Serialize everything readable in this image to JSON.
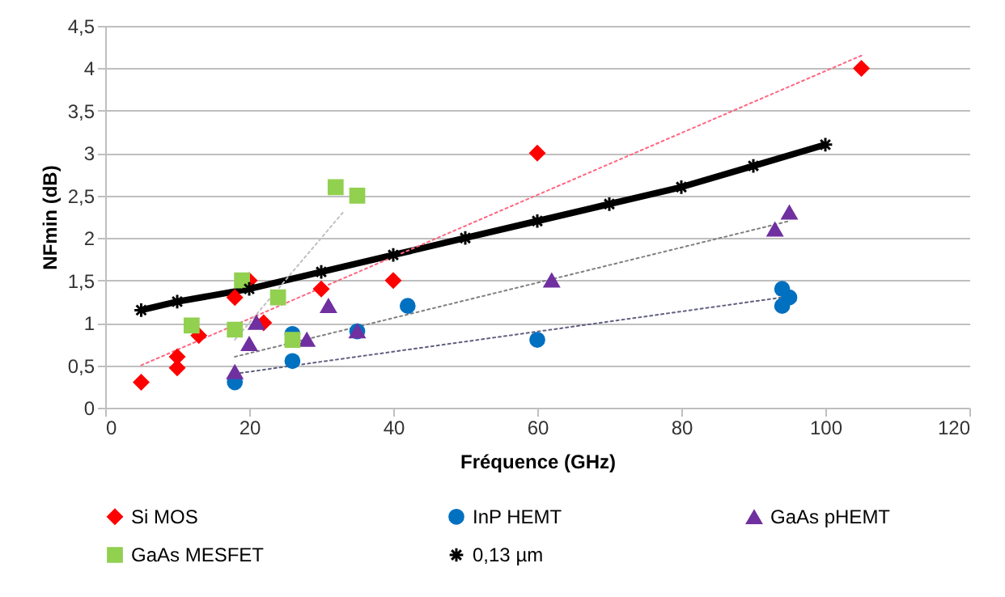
{
  "chart_data": {
    "type": "scatter",
    "xlabel": "Fréquence (GHz)",
    "ylabel": "NFmin (dB)",
    "xlim": [
      0,
      120
    ],
    "ylim": [
      0,
      4.5
    ],
    "xticks": [
      0,
      20,
      40,
      60,
      80,
      100,
      120
    ],
    "yticks": [
      0,
      {
        "value": 0.5,
        "label": "0,5"
      },
      1,
      {
        "value": 1.5,
        "label": "1,5"
      },
      2,
      {
        "value": 2.5,
        "label": "2,5"
      },
      3,
      {
        "value": 3.5,
        "label": "3,5"
      },
      4,
      {
        "value": 4.5,
        "label": "4,5"
      }
    ],
    "grid": "y",
    "legend": "bottom",
    "series": [
      {
        "name": "Si MOS",
        "marker": "diamond",
        "color": "#ff0000",
        "x": [
          5,
          10,
          10,
          13,
          18,
          20,
          22,
          30,
          40,
          60,
          105
        ],
        "values": [
          0.3,
          0.6,
          0.47,
          0.85,
          1.3,
          1.5,
          1.0,
          1.4,
          1.5,
          3.0,
          4.0
        ]
      },
      {
        "name": "InP HEMT",
        "marker": "circle",
        "color": "#0070c0",
        "x": [
          18,
          26,
          26,
          35,
          42,
          60,
          94,
          94,
          95
        ],
        "values": [
          0.3,
          0.87,
          0.55,
          0.9,
          1.2,
          0.8,
          1.4,
          1.2,
          1.3
        ]
      },
      {
        "name": "GaAs pHEMT",
        "marker": "triangle",
        "color": "#7030a0",
        "x": [
          18,
          20,
          21,
          28,
          31,
          35,
          62,
          93,
          95
        ],
        "values": [
          0.42,
          0.75,
          1.0,
          0.8,
          1.2,
          0.9,
          1.5,
          2.1,
          2.3
        ]
      },
      {
        "name": "GaAs MESFET",
        "marker": "square",
        "color": "#92d050",
        "x": [
          12,
          18,
          19,
          24,
          26,
          32,
          35
        ],
        "values": [
          0.97,
          0.92,
          1.5,
          1.3,
          0.8,
          2.6,
          2.5
        ]
      },
      {
        "name": "0,13 µm",
        "type": "line",
        "marker": "cross",
        "line_style": "solid",
        "color": "#000000",
        "x": [
          5,
          10,
          20,
          30,
          40,
          50,
          60,
          70,
          80,
          90,
          100
        ],
        "values": [
          1.15,
          1.25,
          1.4,
          1.6,
          1.8,
          2.0,
          2.2,
          2.4,
          2.6,
          2.85,
          3.1
        ]
      },
      {
        "type": "line",
        "marker": "none",
        "line_style": "dotted",
        "color": "#ff6680",
        "x": [
          5,
          105
        ],
        "values": [
          0.5,
          4.15
        ]
      },
      {
        "type": "line",
        "marker": "none",
        "line_style": "dotted",
        "color": "#c0c0c0",
        "x": [
          18,
          33
        ],
        "values": [
          0.8,
          2.3
        ]
      },
      {
        "type": "line",
        "marker": "none",
        "line_style": "dotted",
        "color": "#808080",
        "x": [
          18,
          95
        ],
        "values": [
          0.6,
          2.2
        ]
      },
      {
        "type": "line",
        "marker": "none",
        "line_style": "dotted",
        "color": "#606080",
        "x": [
          18,
          94
        ],
        "values": [
          0.4,
          1.3
        ]
      }
    ]
  }
}
